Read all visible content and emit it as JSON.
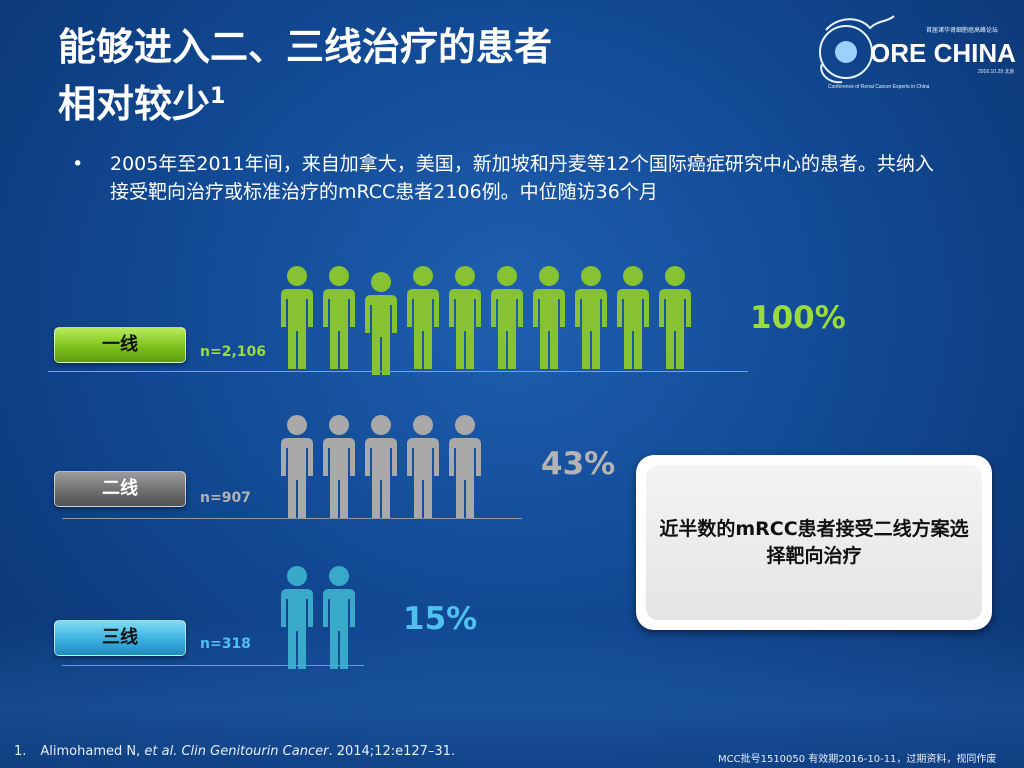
{
  "slide": {
    "title_line1": "能够进入二、三线治疗的患者",
    "title_line2": "相对较少",
    "title_superscript": "1",
    "bullet_symbol": "•",
    "bullet": "2005年至2011年间，来自加拿大，美国，新加坡和丹麦等12个国际癌症研究中心的患者。共纳入接受靶向治疗或标准治疗的mRCC患者2106例。中位随访36个月"
  },
  "logo": {
    "text": "ORE CHINA",
    "subtitle": "首届诸华肾细胞癌高峰论坛",
    "tagline": "Conference of Renal Cancer Experts in China",
    "date": "2016.10.29 北京"
  },
  "rows": [
    {
      "label": "一线",
      "n": "n=2,106",
      "percent": "100%",
      "icons": 10,
      "color": "#86c232",
      "text_color": "#9bdc3c"
    },
    {
      "label": "二线",
      "n": "n=907",
      "percent": "43%",
      "icons": 5,
      "color": "#a9a9a9",
      "text_color": "#b4b4b4"
    },
    {
      "label": "三线",
      "n": "n=318",
      "percent": "15%",
      "icons": 2,
      "color": "#38a9c9",
      "text_color": "#4fc1ee"
    }
  ],
  "callout": {
    "text": "近半数的mRCC患者接受二线方案选择靶向治疗"
  },
  "footnote": {
    "number": "1.",
    "authors": "Alimohamed N, ",
    "etal": "et al. Clin Genitourin Cancer",
    "citation": ". 2014;12:e127–31."
  },
  "approval": "MCC批号1510050  有效期2016-10-11，过期资料，视同作废"
}
